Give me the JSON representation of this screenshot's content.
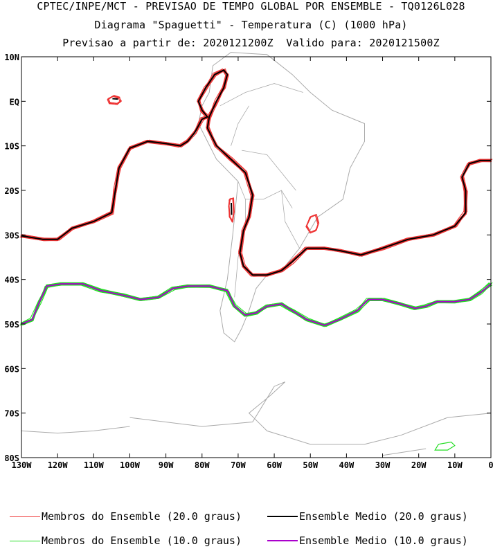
{
  "header": {
    "line1": "CPTEC/INPE/MCT - PREVISAO DE TEMPO GLOBAL POR ENSEMBLE - TQ0126L028",
    "line2": "Diagrama \"Spaguetti\" - Temperatura (C) (1000 hPa)",
    "line3": "Previsao a partir de: 2020121200Z  Valido para: 2020121500Z"
  },
  "axes": {
    "lat_ticks": [
      "10N",
      "EQ",
      "10S",
      "20S",
      "30S",
      "40S",
      "50S",
      "60S",
      "70S",
      "80S"
    ],
    "lon_ticks": [
      "130W",
      "120W",
      "110W",
      "100W",
      "90W",
      "80W",
      "70W",
      "60W",
      "50W",
      "40W",
      "30W",
      "20W",
      "10W",
      "0"
    ]
  },
  "colors": {
    "member20": "#ee3333",
    "mean20": "#000000",
    "member10": "#22dd22",
    "mean10": "#aa00cc",
    "coast": "#aaaaaa"
  },
  "legend": [
    {
      "label": "Membros do Ensemble (20.0 graus)",
      "color": "#ee3333"
    },
    {
      "label": "Ensemble Medio (20.0 graus)",
      "color": "#000000"
    },
    {
      "label": "Membros do Ensemble (10.0 graus)",
      "color": "#22dd22"
    },
    {
      "label": "Ensemble Medio (10.0 graus)",
      "color": "#aa00cc"
    }
  ],
  "contours": {
    "mean20": [
      [
        -130,
        -30.2
      ],
      [
        -124,
        -31
      ],
      [
        -120,
        -31
      ],
      [
        -116,
        -28.5
      ],
      [
        -110,
        -27
      ],
      [
        -105,
        -25
      ],
      [
        -104,
        -20
      ],
      [
        -103,
        -15
      ],
      [
        -100,
        -10.5
      ],
      [
        -95,
        -9
      ],
      [
        -90,
        -9.5
      ],
      [
        -86,
        -10
      ],
      [
        -84,
        -9
      ],
      [
        -82,
        -7
      ],
      [
        -80,
        -4
      ],
      [
        -78.5,
        -3.5
      ],
      [
        -80,
        -2
      ],
      [
        -81,
        0
      ],
      [
        -79,
        3
      ],
      [
        -76.5,
        6
      ],
      [
        -74,
        7
      ],
      [
        -73,
        6
      ],
      [
        -74,
        3
      ],
      [
        -76,
        0
      ],
      [
        -78,
        -3.5
      ],
      [
        -78.5,
        -6
      ],
      [
        -76,
        -10
      ],
      [
        -72,
        -13
      ],
      [
        -68,
        -16
      ],
      [
        -66,
        -21
      ],
      [
        -67,
        -26
      ],
      [
        -68.5,
        -29
      ],
      [
        -69.5,
        -34
      ],
      [
        -68.5,
        -37
      ],
      [
        -66,
        -39
      ],
      [
        -62,
        -39
      ],
      [
        -58,
        -38
      ],
      [
        -55,
        -36
      ],
      [
        -51,
        -33
      ],
      [
        -46,
        -33
      ],
      [
        -42,
        -33.5
      ],
      [
        -36,
        -34.5
      ],
      [
        -30,
        -33
      ],
      [
        -23,
        -31
      ],
      [
        -16,
        -30
      ],
      [
        -10,
        -28
      ],
      [
        -7,
        -25
      ],
      [
        -7,
        -20
      ],
      [
        -8,
        -17
      ],
      [
        -6,
        -14
      ],
      [
        -3,
        -13.3
      ],
      [
        0,
        -13.3
      ]
    ],
    "mean10": [
      [
        -130,
        -50
      ],
      [
        -127,
        -49
      ],
      [
        -125,
        -45
      ],
      [
        -123,
        -41.5
      ],
      [
        -119,
        -41
      ],
      [
        -113,
        -41
      ],
      [
        -108,
        -42.5
      ],
      [
        -102,
        -43.5
      ],
      [
        -97,
        -44.5
      ],
      [
        -92,
        -44
      ],
      [
        -88,
        -42
      ],
      [
        -84,
        -41.5
      ],
      [
        -78,
        -41.5
      ],
      [
        -73,
        -42.5
      ],
      [
        -71,
        -46
      ],
      [
        -68,
        -48
      ],
      [
        -65,
        -47.5
      ],
      [
        -62,
        -46
      ],
      [
        -58,
        -45.5
      ],
      [
        -55,
        -47
      ],
      [
        -51,
        -49
      ],
      [
        -46,
        -50.3
      ],
      [
        -42,
        -49
      ],
      [
        -37,
        -47
      ],
      [
        -34,
        -44.5
      ],
      [
        -30,
        -44.5
      ],
      [
        -25,
        -45.5
      ],
      [
        -21,
        -46.5
      ],
      [
        -18,
        -46
      ],
      [
        -15,
        -45
      ],
      [
        -10,
        -45
      ],
      [
        -6,
        -44.5
      ],
      [
        -3,
        -43
      ],
      [
        0,
        -41
      ]
    ],
    "blob20": [
      [
        -106,
        0.5
      ],
      [
        -104.5,
        1.2
      ],
      [
        -103,
        0.8
      ],
      [
        -102.5,
        0
      ],
      [
        -103.5,
        -0.6
      ],
      [
        -105.5,
        -0.4
      ],
      [
        -106,
        0.5
      ]
    ],
    "island20": [
      [
        -72.3,
        -22
      ],
      [
        -71.4,
        -21.8
      ],
      [
        -71.2,
        -25
      ],
      [
        -71.6,
        -27
      ],
      [
        -72.3,
        -26
      ],
      [
        -72.5,
        -23.5
      ],
      [
        -72.3,
        -22
      ]
    ],
    "uruguay20": [
      [
        -50,
        -26
      ],
      [
        -48.5,
        -25.5
      ],
      [
        -47.8,
        -27.5
      ],
      [
        -48.5,
        -29
      ],
      [
        -50,
        -29.5
      ],
      [
        -51,
        -28
      ],
      [
        -50,
        -26
      ]
    ],
    "green_blob": [
      [
        -14.5,
        -77
      ],
      [
        -11,
        -76.5
      ],
      [
        -10,
        -77.3
      ],
      [
        -12,
        -78.3
      ],
      [
        -15.5,
        -78.3
      ],
      [
        -14.5,
        -77
      ]
    ]
  }
}
